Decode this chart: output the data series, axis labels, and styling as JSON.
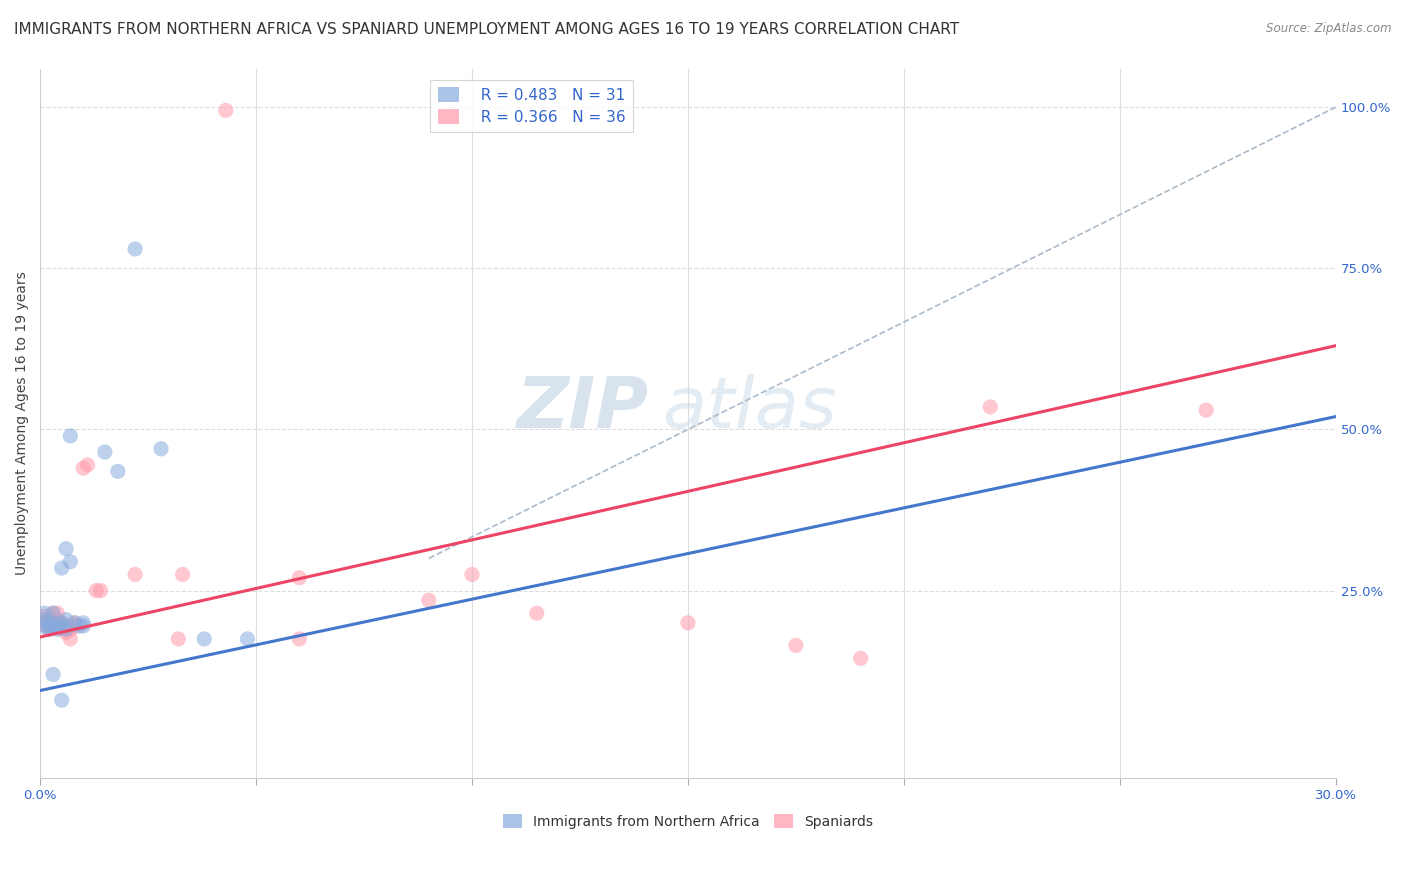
{
  "title": "IMMIGRANTS FROM NORTHERN AFRICA VS SPANIARD UNEMPLOYMENT AMONG AGES 16 TO 19 YEARS CORRELATION CHART",
  "source": "Source: ZipAtlas.com",
  "ylabel": "Unemployment Among Ages 16 to 19 years",
  "xlim": [
    0,
    0.3
  ],
  "ylim": [
    -0.04,
    1.06
  ],
  "xticks": [
    0.0,
    0.05,
    0.1,
    0.15,
    0.2,
    0.25,
    0.3
  ],
  "xticklabels": [
    "0.0%",
    "",
    "",
    "",
    "",
    "",
    "30.0%"
  ],
  "yticks_right": [
    0.0,
    0.25,
    0.5,
    0.75,
    1.0
  ],
  "yticklabels_right": [
    "",
    "25.0%",
    "50.0%",
    "75.0%",
    "100.0%"
  ],
  "legend_r1": "R = 0.483",
  "legend_n1": "N = 31",
  "legend_r2": "R = 0.366",
  "legend_n2": "N = 36",
  "legend_label1": "Immigrants from Northern Africa",
  "legend_label2": "Spaniards",
  "blue_color": "#88AADD",
  "pink_color": "#FF99AA",
  "blue_line_color": "#4477CC",
  "pink_line_color": "#EE4466",
  "blue_scatter": [
    [
      0.001,
      0.205
    ],
    [
      0.001,
      0.215
    ],
    [
      0.001,
      0.195
    ],
    [
      0.002,
      0.2
    ],
    [
      0.002,
      0.195
    ],
    [
      0.002,
      0.19
    ],
    [
      0.003,
      0.2
    ],
    [
      0.003,
      0.195
    ],
    [
      0.003,
      0.215
    ],
    [
      0.004,
      0.195
    ],
    [
      0.004,
      0.19
    ],
    [
      0.005,
      0.2
    ],
    [
      0.005,
      0.195
    ],
    [
      0.005,
      0.285
    ],
    [
      0.006,
      0.205
    ],
    [
      0.006,
      0.19
    ],
    [
      0.007,
      0.295
    ],
    [
      0.008,
      0.2
    ],
    [
      0.009,
      0.195
    ],
    [
      0.015,
      0.465
    ],
    [
      0.018,
      0.435
    ],
    [
      0.022,
      0.78
    ],
    [
      0.028,
      0.47
    ],
    [
      0.038,
      0.175
    ],
    [
      0.048,
      0.175
    ],
    [
      0.003,
      0.12
    ],
    [
      0.005,
      0.08
    ],
    [
      0.01,
      0.2
    ],
    [
      0.01,
      0.195
    ],
    [
      0.006,
      0.315
    ],
    [
      0.007,
      0.49
    ]
  ],
  "pink_scatter": [
    [
      0.001,
      0.21
    ],
    [
      0.001,
      0.2
    ],
    [
      0.002,
      0.195
    ],
    [
      0.002,
      0.205
    ],
    [
      0.002,
      0.19
    ],
    [
      0.003,
      0.2
    ],
    [
      0.003,
      0.215
    ],
    [
      0.003,
      0.195
    ],
    [
      0.004,
      0.205
    ],
    [
      0.004,
      0.215
    ],
    [
      0.005,
      0.2
    ],
    [
      0.005,
      0.19
    ],
    [
      0.006,
      0.195
    ],
    [
      0.006,
      0.185
    ],
    [
      0.007,
      0.19
    ],
    [
      0.007,
      0.175
    ],
    [
      0.008,
      0.195
    ],
    [
      0.008,
      0.2
    ],
    [
      0.01,
      0.44
    ],
    [
      0.011,
      0.445
    ],
    [
      0.013,
      0.25
    ],
    [
      0.014,
      0.25
    ],
    [
      0.022,
      0.275
    ],
    [
      0.032,
      0.175
    ],
    [
      0.033,
      0.275
    ],
    [
      0.06,
      0.175
    ],
    [
      0.06,
      0.27
    ],
    [
      0.09,
      0.235
    ],
    [
      0.1,
      0.275
    ],
    [
      0.115,
      0.215
    ],
    [
      0.15,
      0.2
    ],
    [
      0.175,
      0.165
    ],
    [
      0.19,
      0.145
    ],
    [
      0.22,
      0.535
    ],
    [
      0.043,
      0.995
    ],
    [
      0.27,
      0.53
    ]
  ],
  "blue_line_x": [
    0.0,
    0.3
  ],
  "blue_line_y": [
    0.095,
    0.52
  ],
  "pink_line_x": [
    0.0,
    0.3
  ],
  "pink_line_y": [
    0.178,
    0.63
  ],
  "gray_line_x": [
    0.09,
    0.3
  ],
  "gray_line_y": [
    0.3,
    1.0
  ],
  "watermark_zip": "ZIP",
  "watermark_atlas": "atlas",
  "background_color": "#FFFFFF",
  "grid_color": "#DDDDDD",
  "title_fontsize": 11,
  "axis_label_fontsize": 10,
  "tick_fontsize": 9.5
}
